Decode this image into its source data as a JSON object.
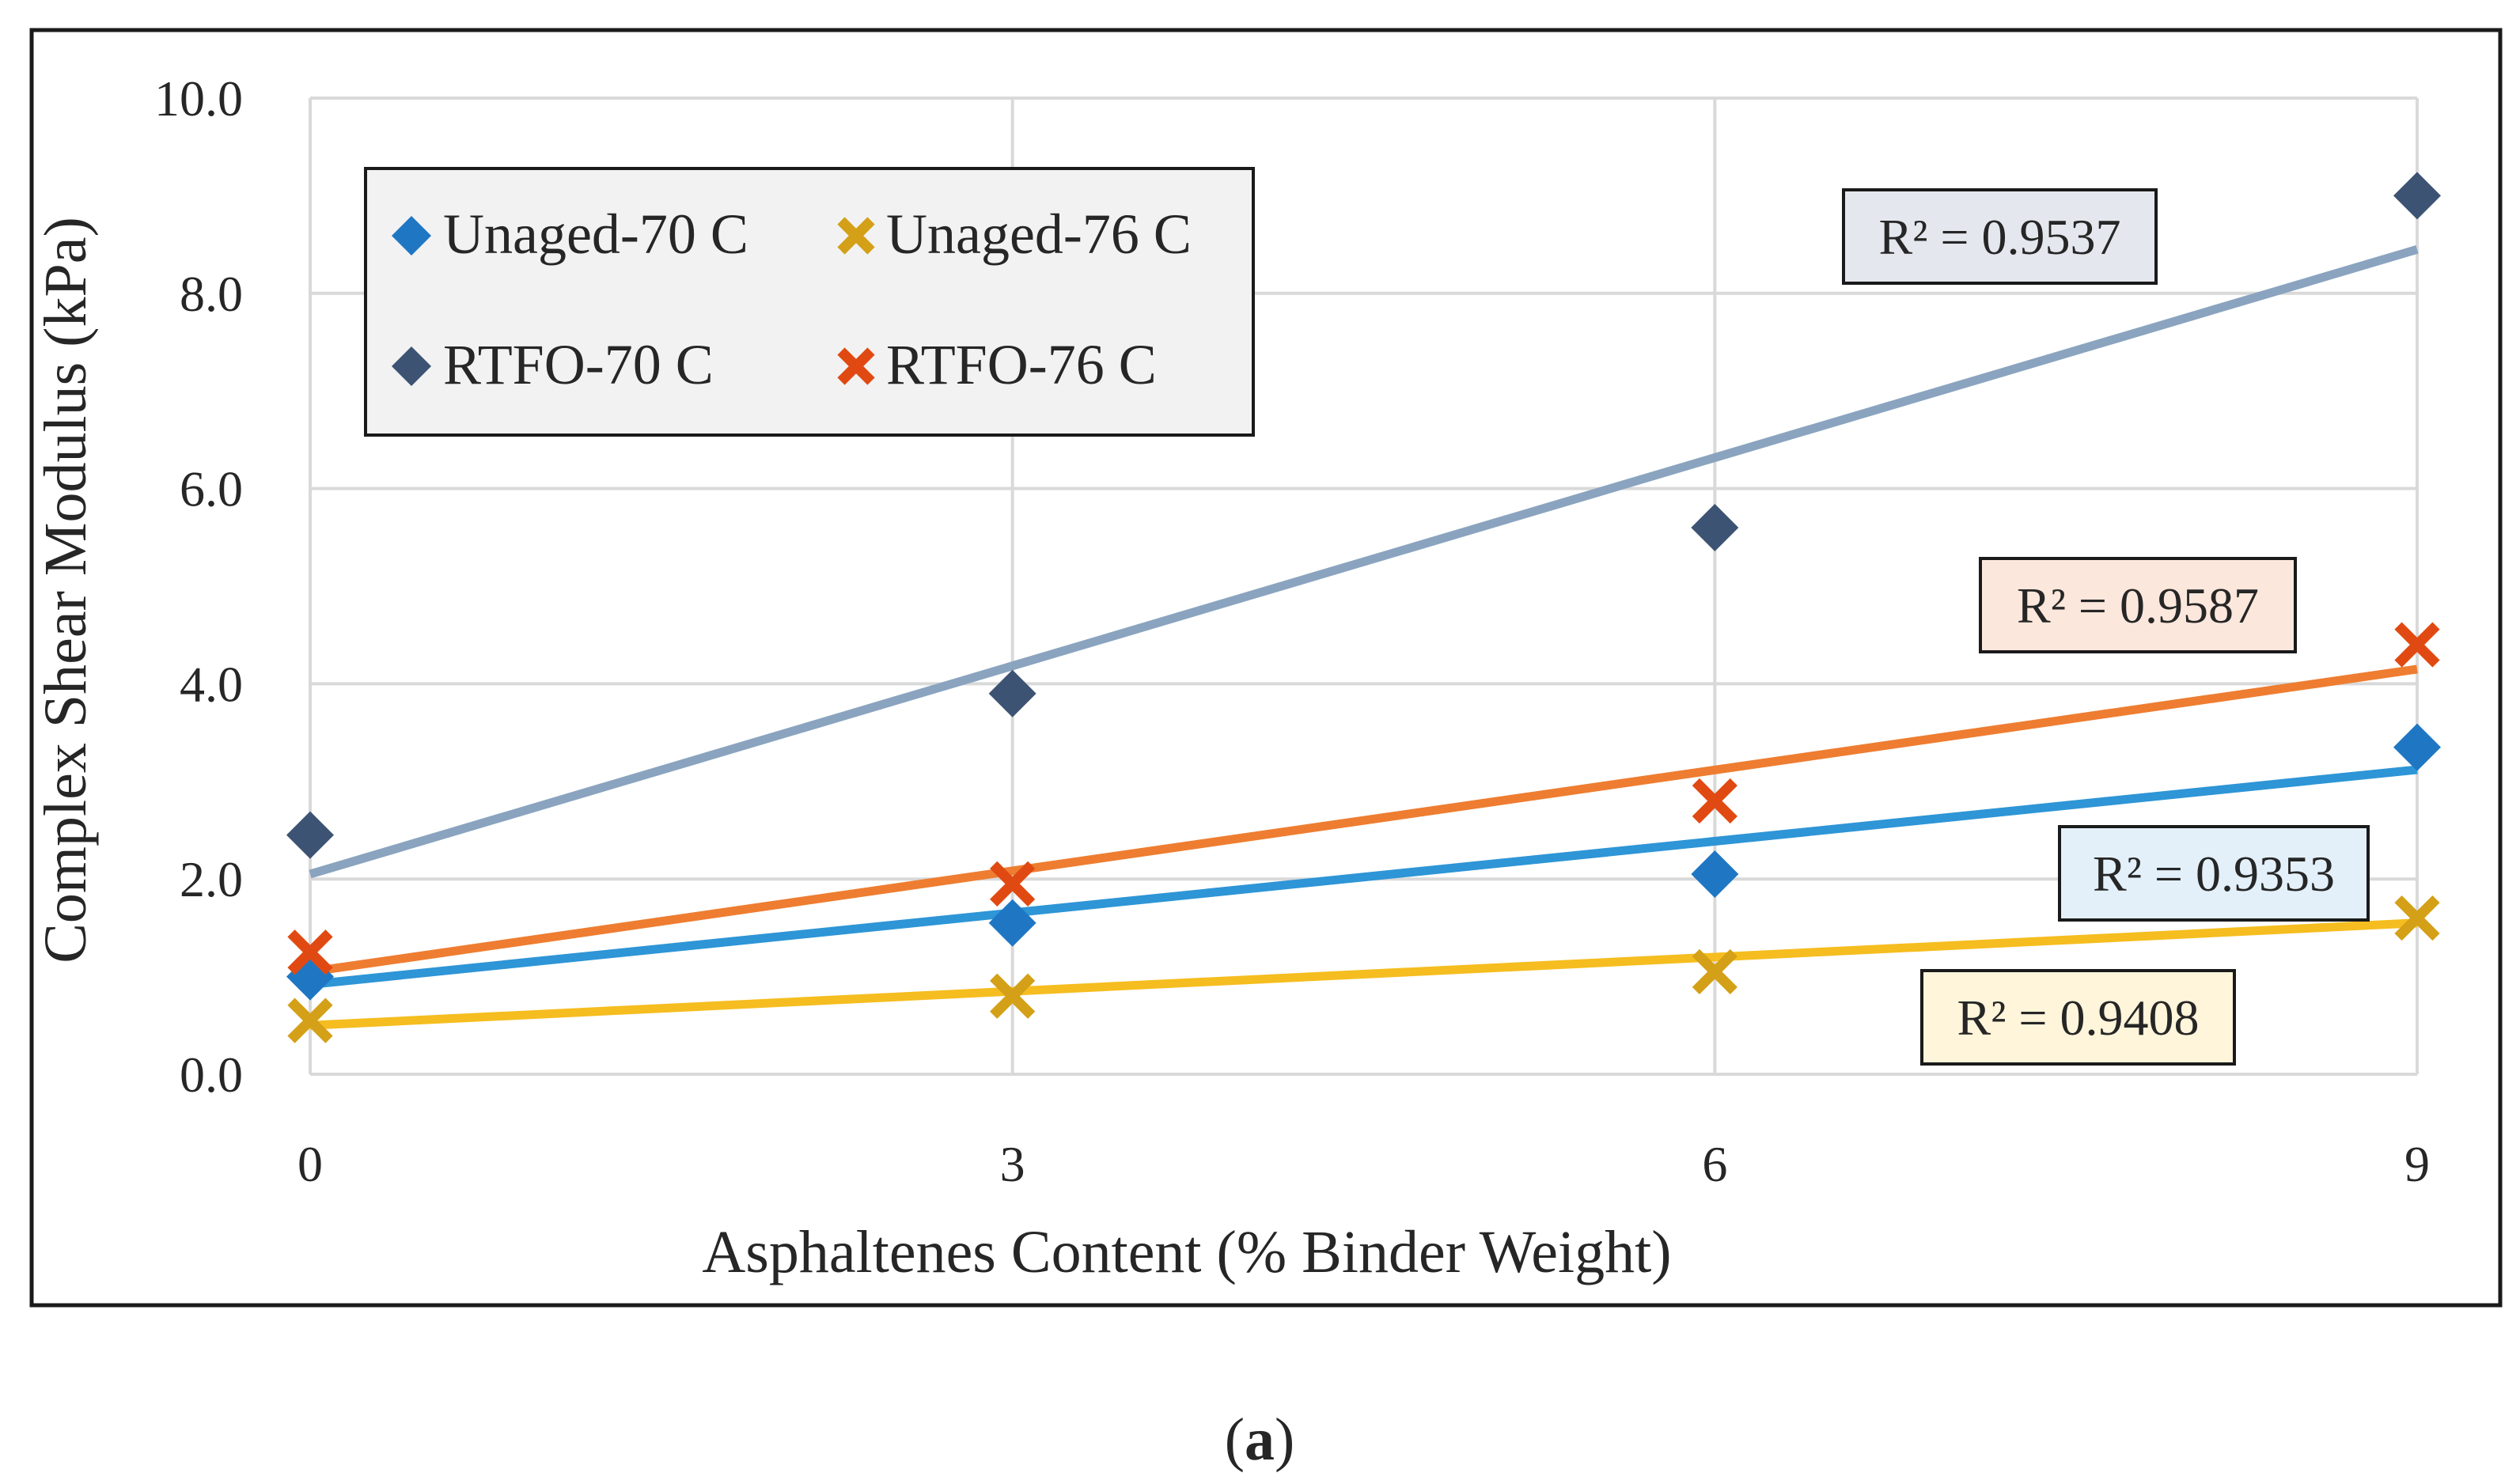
{
  "chart_data": {
    "type": "scatter",
    "title": "",
    "xlabel": "Asphaltenes Content (% Binder Weight)",
    "ylabel": "Complex Shear Modulus (kPa)",
    "x": [
      0,
      3,
      6,
      9
    ],
    "x_ticks": [
      "0",
      "3",
      "6",
      "9"
    ],
    "y_ticks": [
      "0.0",
      "2.0",
      "4.0",
      "6.0",
      "8.0",
      "10.0"
    ],
    "xlim": [
      0,
      9
    ],
    "ylim": [
      0,
      10
    ],
    "grid": true,
    "legend_position": "top-left",
    "series": [
      {
        "name": "Unaged-70 C",
        "marker": "diamond",
        "color": "#1f77c4",
        "trend_color": "#2e95d6",
        "values": [
          1.0,
          1.55,
          2.05,
          3.35
        ],
        "trend": [
          0.92,
          3.12
        ],
        "r2": "R² = 0.9353",
        "r2_fill": "#e3f0fa"
      },
      {
        "name": "Unaged-76 C",
        "marker": "x",
        "color": "#d4a017",
        "trend_color": "#f5bd1f",
        "values": [
          0.55,
          0.8,
          1.05,
          1.6
        ],
        "trend": [
          0.5,
          1.55
        ],
        "r2": "R² = 0.9408",
        "r2_fill": "#fef5da"
      },
      {
        "name": "RTFO-70 C",
        "marker": "diamond",
        "color": "#3d5373",
        "trend_color": "#8aa4bf",
        "values": [
          2.45,
          3.9,
          5.6,
          9.0
        ],
        "trend": [
          2.05,
          8.45
        ],
        "r2": "R² = 0.9537",
        "r2_fill": "#e4e8ee"
      },
      {
        "name": "RTFO-76 C",
        "marker": "x",
        "color": "#e04a12",
        "trend_color": "#ee7d31",
        "values": [
          1.25,
          1.95,
          2.8,
          4.4
        ],
        "trend": [
          1.05,
          4.15
        ],
        "r2": "R² = 0.9587",
        "r2_fill": "#fce7dc"
      }
    ]
  },
  "caption": {
    "open": "(",
    "letter": "a",
    "close": ")"
  }
}
